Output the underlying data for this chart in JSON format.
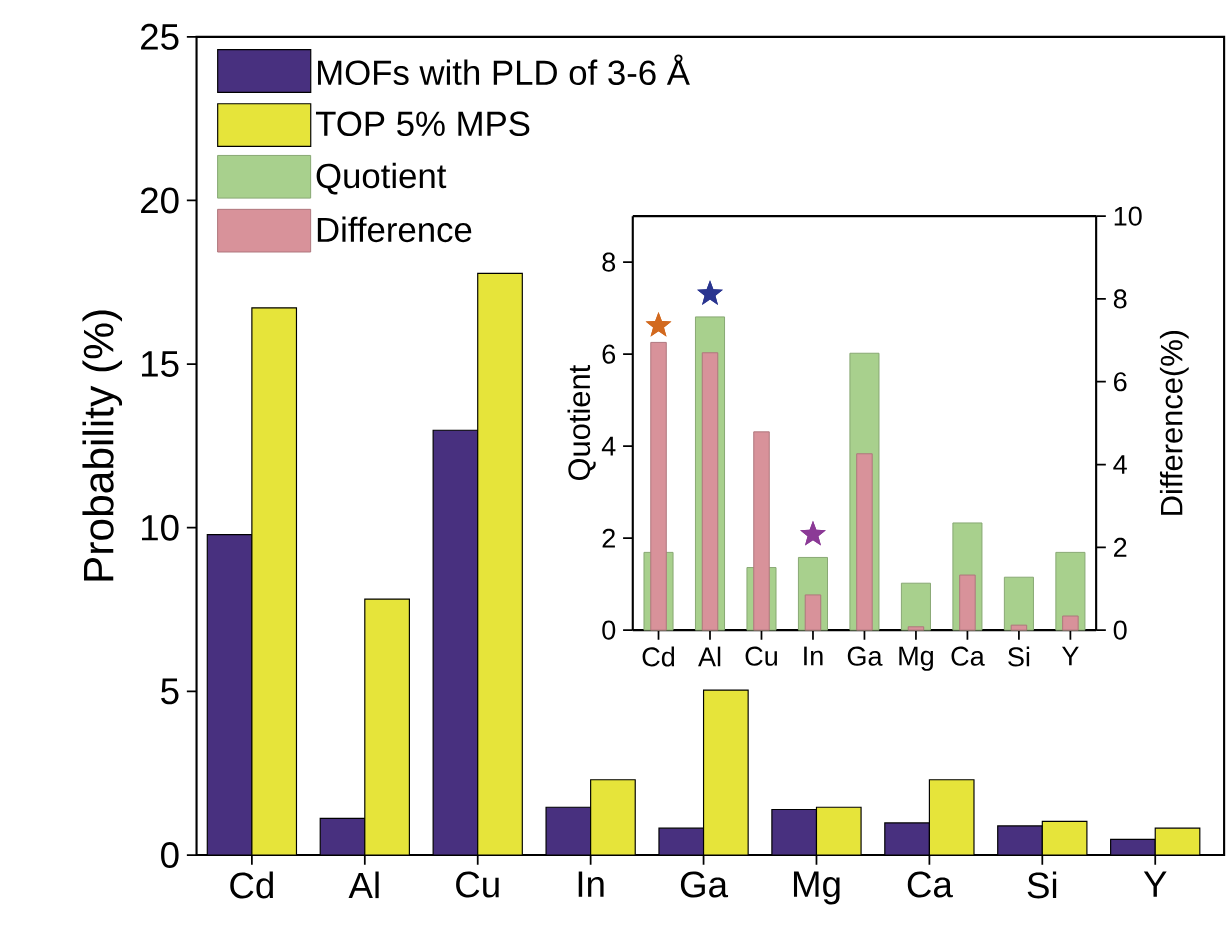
{
  "chart_data": [
    {
      "type": "bar",
      "categories": [
        "Cd",
        "Al",
        "Cu",
        "In",
        "Ga",
        "Mg",
        "Ca",
        "Si",
        "Y"
      ],
      "series": [
        {
          "name": "MOFs with PLD of 3-6 Å",
          "color": "#48307f",
          "values": [
            9.79,
            1.12,
            12.98,
            1.46,
            0.82,
            1.39,
            0.98,
            0.89,
            0.48
          ]
        },
        {
          "name": "TOP 5% MPS",
          "color": "#e6e43a",
          "values": [
            16.72,
            7.82,
            17.77,
            2.3,
            5.04,
            1.46,
            2.3,
            1.03,
            0.82
          ]
        }
      ],
      "ylabel": "Probability (%)",
      "ylim": [
        0,
        25
      ],
      "yticks": [
        0,
        5,
        10,
        15,
        20,
        25
      ],
      "legend": "top left"
    },
    {
      "type": "bar",
      "categories": [
        "Cd",
        "Al",
        "Cu",
        "In",
        "Ga",
        "Mg",
        "Ca",
        "Si",
        "Y"
      ],
      "series": [
        {
          "name": "Quotient",
          "color": "#a8d08d",
          "values": [
            1.69,
            6.81,
            1.36,
            1.58,
            6.02,
            1.02,
            2.33,
            1.15,
            1.69
          ]
        },
        {
          "name": "Difference",
          "color": "#d8929a",
          "axis": "y2",
          "values": [
            6.95,
            6.7,
            4.79,
            0.85,
            4.26,
            0.08,
            1.33,
            0.12,
            0.34
          ]
        },
        {
          "type": "scatter",
          "marker": "star",
          "colors": [
            "#d2691e",
            null,
            null,
            null,
            null,
            null,
            null,
            null,
            null
          ],
          "values": [
            6.62,
            null,
            null,
            null,
            null,
            null,
            null,
            null,
            null
          ]
        },
        {
          "type": "scatter",
          "marker": "star",
          "colors": [
            null,
            "#2a3590",
            null,
            null,
            null,
            null,
            null,
            null,
            null
          ],
          "values": [
            null,
            7.31,
            null,
            null,
            null,
            null,
            null,
            null,
            null
          ]
        },
        {
          "type": "scatter",
          "marker": "star",
          "colors": [
            null,
            null,
            null,
            "#8b3a96",
            null,
            null,
            null,
            null,
            null
          ],
          "values": [
            null,
            null,
            null,
            2.08,
            null,
            null,
            null,
            null,
            null
          ]
        }
      ],
      "ylabel": "Quotient",
      "legend": "top left",
      "y2label": "Difference(%)",
      "ylim": [
        0,
        9
      ],
      "yticks": [
        0,
        2,
        4,
        6,
        8
      ],
      "y2lim": [
        0,
        10
      ],
      "y2ticks": [
        0,
        2,
        4,
        6,
        8,
        10
      ]
    }
  ]
}
